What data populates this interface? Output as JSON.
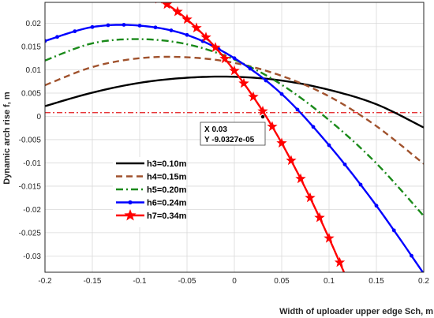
{
  "chart_data": {
    "type": "line",
    "xlabel": "Width of uploader upper edge Sch, m",
    "ylabel": "Dynamic arch rise f, m",
    "xlim": [
      -0.2,
      0.2
    ],
    "ylim": [
      -0.0335,
      0.0245
    ],
    "xticks": [
      "-0.2",
      "-0.15",
      "-0.1",
      "-0.05",
      "0",
      "0.05",
      "0.1",
      "0.15",
      "0.2"
    ],
    "yticks": [
      "0.02",
      "0.015",
      "0.01",
      "0.005",
      "0",
      "-0.005",
      "-0.01",
      "-0.015",
      "-0.02",
      "-0.025",
      "-0.03"
    ],
    "grid": true,
    "legend_position": "lower-left",
    "reference_line": {
      "y": 0.0008,
      "color": "#e41a1c",
      "style": "dash-dot"
    },
    "series": [
      {
        "name": "h3=0.10m",
        "color": "#000000",
        "style": "solid",
        "marker": "none",
        "x": [
          -0.2,
          -0.15,
          -0.1,
          -0.05,
          0,
          0.05,
          0.1,
          0.15,
          0.2
        ],
        "y": [
          0.0022,
          0.0051,
          0.0072,
          0.0083,
          0.0085,
          0.0077,
          0.0057,
          0.0026,
          -0.0024
        ]
      },
      {
        "name": "h4=0.15m",
        "color": "#a0522d",
        "style": "dashed",
        "marker": "none",
        "x": [
          -0.2,
          -0.15,
          -0.1,
          -0.05,
          0,
          0.05,
          0.1,
          0.15,
          0.2
        ],
        "y": [
          0.0067,
          0.0106,
          0.0125,
          0.0127,
          0.0115,
          0.0087,
          0.0043,
          -0.0021,
          -0.0102
        ]
      },
      {
        "name": "h5=0.20m",
        "color": "#1a8a1a",
        "style": "dash-dot",
        "marker": "none",
        "x": [
          -0.2,
          -0.15,
          -0.1,
          -0.05,
          0,
          0.05,
          0.1,
          0.15,
          0.2
        ],
        "y": [
          0.012,
          0.0157,
          0.0166,
          0.0155,
          0.0122,
          0.0068,
          -0.0008,
          -0.0101,
          -0.0214
        ]
      },
      {
        "name": "h6=0.24m",
        "color": "#0000ff",
        "style": "solid",
        "marker": "dot",
        "x": [
          -0.2,
          -0.15,
          -0.1,
          -0.05,
          0,
          0.05,
          0.1,
          0.15,
          0.2
        ],
        "y": [
          0.0162,
          0.0192,
          0.0195,
          0.0175,
          0.0125,
          0.0048,
          -0.0062,
          -0.0192,
          -0.0338
        ]
      },
      {
        "name": "h7=0.34m",
        "color": "#ff0000",
        "style": "solid",
        "marker": "star",
        "x": [
          -0.08,
          -0.06,
          -0.04,
          -0.02,
          0,
          0.02,
          0.04,
          0.06,
          0.08,
          0.1,
          0.12
        ],
        "y": [
          0.0252,
          0.0225,
          0.019,
          0.0148,
          0.0098,
          0.0042,
          -0.0022,
          -0.0095,
          -0.0175,
          -0.0262,
          -0.0355
        ]
      }
    ],
    "datatip": {
      "x_text": "X 0.03",
      "y_text": "Y -9.0327e-05",
      "x": 0.03,
      "y": -9e-05
    }
  }
}
